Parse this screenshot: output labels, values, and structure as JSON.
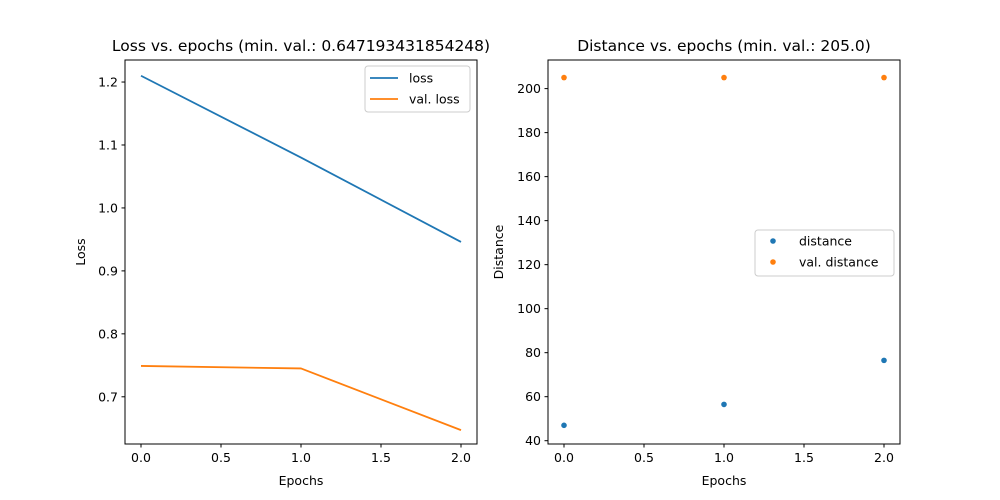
{
  "colors": {
    "series_1": "#1f77b4",
    "series_2": "#ff7f0e"
  },
  "chart_data": [
    {
      "type": "line",
      "title": "Loss vs. epochs (min. val.: 0.647193431854248)",
      "xlabel": "Epochs",
      "ylabel": "Loss",
      "xlim": [
        -0.1,
        2.1
      ],
      "ylim": [
        0.625,
        1.235
      ],
      "xticks": [
        0.0,
        0.5,
        1.0,
        1.5,
        2.0
      ],
      "xtick_labels": [
        "0.0",
        "0.5",
        "1.0",
        "1.5",
        "2.0"
      ],
      "yticks": [
        0.7,
        0.8,
        0.9,
        1.0,
        1.1,
        1.2
      ],
      "ytick_labels": [
        "0.7",
        "0.8",
        "0.9",
        "1.0",
        "1.1",
        "1.2"
      ],
      "grid": false,
      "legend_position": "top-right",
      "series": [
        {
          "name": "loss",
          "color": "#1f77b4",
          "x": [
            0,
            1,
            2
          ],
          "values": [
            1.21,
            1.08,
            0.946
          ]
        },
        {
          "name": "val. loss",
          "color": "#ff7f0e",
          "x": [
            0,
            1,
            2
          ],
          "values": [
            0.749,
            0.745,
            0.647
          ]
        }
      ]
    },
    {
      "type": "scatter",
      "title": "Distance vs. epochs (min. val.: 205.0)",
      "xlabel": "Epochs",
      "ylabel": "Distance",
      "xlim": [
        -0.1,
        2.1
      ],
      "ylim": [
        38.5,
        213
      ],
      "xticks": [
        0.0,
        0.5,
        1.0,
        1.5,
        2.0
      ],
      "xtick_labels": [
        "0.0",
        "0.5",
        "1.0",
        "1.5",
        "2.0"
      ],
      "yticks": [
        40,
        60,
        80,
        100,
        120,
        140,
        160,
        180,
        200
      ],
      "ytick_labels": [
        "40",
        "60",
        "80",
        "100",
        "120",
        "140",
        "160",
        "180",
        "200"
      ],
      "grid": false,
      "legend_position": "center-right",
      "series": [
        {
          "name": "distance",
          "color": "#1f77b4",
          "x": [
            0,
            1,
            2
          ],
          "values": [
            47,
            56.5,
            76.5
          ]
        },
        {
          "name": "val. distance",
          "color": "#ff7f0e",
          "x": [
            0,
            1,
            2
          ],
          "values": [
            205,
            205,
            205
          ]
        }
      ]
    }
  ]
}
